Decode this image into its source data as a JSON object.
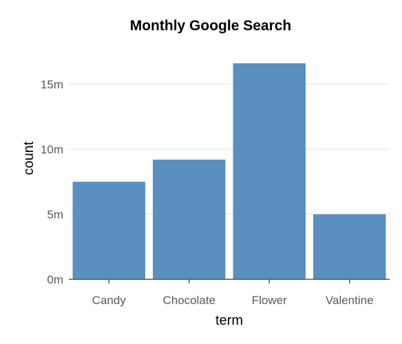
{
  "chart_data": {
    "type": "bar",
    "title": "Monthly Google Search",
    "xlabel": "term",
    "ylabel": "count",
    "categories": [
      "Candy",
      "Chocolate",
      "Flower",
      "Valentine"
    ],
    "values": [
      7500000,
      9200000,
      16600000,
      5000000
    ],
    "ylim": [
      0,
      17500000
    ],
    "yticks": [
      0,
      5000000,
      10000000,
      15000000
    ],
    "ytick_labels": [
      "0m",
      "5m",
      "10m",
      "15m"
    ],
    "grid": "horizontal",
    "bar_color": "#5a8fbf",
    "legend": "none"
  }
}
